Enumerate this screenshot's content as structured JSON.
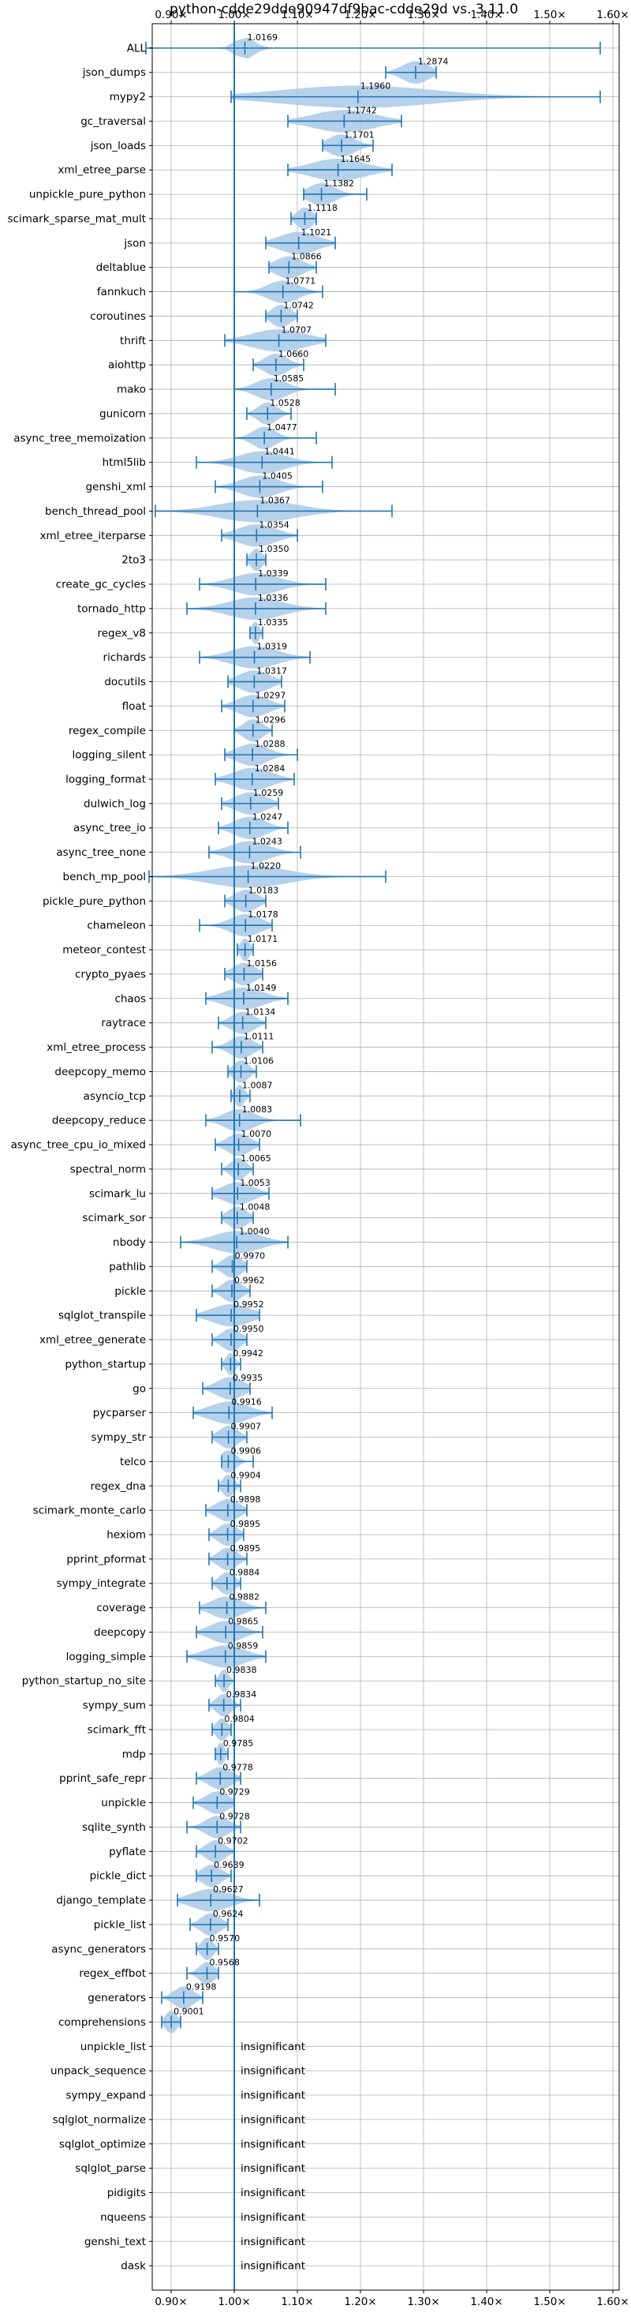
{
  "chart_data": {
    "type": "violin",
    "title": "python-cdde29dde90947df9bac-cdde29d vs. 3.11.0",
    "xlim": [
      0.87,
      1.61
    ],
    "x_ticks": [
      0.9,
      1.0,
      1.1,
      1.2,
      1.3,
      1.4,
      1.5,
      1.6
    ],
    "x_tick_labels": [
      "0.90×",
      "1.00×",
      "1.10×",
      "1.20×",
      "1.30×",
      "1.40×",
      "1.50×",
      "1.60×"
    ],
    "reference_line": 1.0,
    "grid": true,
    "insignificant_label": "insignificant",
    "colors": {
      "violin": "#a9c9e6",
      "marker": "#1f77b4",
      "grid": "#b0b0b0"
    },
    "benchmarks": [
      {
        "name": "ALL",
        "median": 1.0169,
        "label": "1.0169",
        "min": 0.86,
        "max": 1.58,
        "spread": 0.025
      },
      {
        "name": "json_dumps",
        "median": 1.2874,
        "label": "1.2874",
        "min": 1.24,
        "max": 1.32,
        "spread": 0.035
      },
      {
        "name": "mypy2",
        "median": 1.196,
        "label": "1.1960",
        "min": 0.995,
        "max": 1.58,
        "spread": 0.2
      },
      {
        "name": "gc_traversal",
        "median": 1.1742,
        "label": "1.1742",
        "min": 1.085,
        "max": 1.265,
        "spread": 0.08
      },
      {
        "name": "json_loads",
        "median": 1.1701,
        "label": "1.1701",
        "min": 1.14,
        "max": 1.22,
        "spread": 0.035
      },
      {
        "name": "xml_etree_parse",
        "median": 1.1645,
        "label": "1.1645",
        "min": 1.085,
        "max": 1.25,
        "spread": 0.07
      },
      {
        "name": "unpickle_pure_python",
        "median": 1.1382,
        "label": "1.1382",
        "min": 1.11,
        "max": 1.21,
        "spread": 0.035
      },
      {
        "name": "scimark_sparse_mat_mult",
        "median": 1.1118,
        "label": "1.1118",
        "min": 1.09,
        "max": 1.13,
        "spread": 0.02
      },
      {
        "name": "json",
        "median": 1.1021,
        "label": "1.1021",
        "min": 1.05,
        "max": 1.16,
        "spread": 0.05
      },
      {
        "name": "deltablue",
        "median": 1.0866,
        "label": "1.0866",
        "min": 1.055,
        "max": 1.13,
        "spread": 0.035
      },
      {
        "name": "fannkuch",
        "median": 1.0771,
        "label": "1.0771",
        "min": 1.0,
        "max": 1.14,
        "spread": 0.04
      },
      {
        "name": "coroutines",
        "median": 1.0742,
        "label": "1.0742",
        "min": 1.05,
        "max": 1.1,
        "spread": 0.025
      },
      {
        "name": "thrift",
        "median": 1.0707,
        "label": "1.0707",
        "min": 0.985,
        "max": 1.145,
        "spread": 0.07
      },
      {
        "name": "aiohttp",
        "median": 1.066,
        "label": "1.0660",
        "min": 1.03,
        "max": 1.11,
        "spread": 0.03
      },
      {
        "name": "mako",
        "median": 1.0585,
        "label": "1.0585",
        "min": 1.0,
        "max": 1.16,
        "spread": 0.04
      },
      {
        "name": "gunicorn",
        "median": 1.0528,
        "label": "1.0528",
        "min": 1.02,
        "max": 1.09,
        "spread": 0.025
      },
      {
        "name": "async_tree_memoization",
        "median": 1.0477,
        "label": "1.0477",
        "min": 1.0,
        "max": 1.13,
        "spread": 0.03
      },
      {
        "name": "html5lib",
        "median": 1.0441,
        "label": "1.0441",
        "min": 0.94,
        "max": 1.155,
        "spread": 0.06
      },
      {
        "name": "genshi_xml",
        "median": 1.0405,
        "label": "1.0405",
        "min": 0.97,
        "max": 1.14,
        "spread": 0.05
      },
      {
        "name": "bench_thread_pool",
        "median": 1.0367,
        "label": "1.0367",
        "min": 0.875,
        "max": 1.25,
        "spread": 0.1
      },
      {
        "name": "xml_etree_iterparse",
        "median": 1.0354,
        "label": "1.0354",
        "min": 0.98,
        "max": 1.1,
        "spread": 0.05
      },
      {
        "name": "2to3",
        "median": 1.035,
        "label": "1.0350",
        "min": 1.02,
        "max": 1.05,
        "spread": 0.015
      },
      {
        "name": "create_gc_cycles",
        "median": 1.0339,
        "label": "1.0339",
        "min": 0.945,
        "max": 1.145,
        "spread": 0.06
      },
      {
        "name": "tornado_http",
        "median": 1.0336,
        "label": "1.0336",
        "min": 0.925,
        "max": 1.145,
        "spread": 0.07
      },
      {
        "name": "regex_v8",
        "median": 1.0335,
        "label": "1.0335",
        "min": 1.025,
        "max": 1.045,
        "spread": 0.01
      },
      {
        "name": "richards",
        "median": 1.0319,
        "label": "1.0319",
        "min": 0.945,
        "max": 1.12,
        "spread": 0.06
      },
      {
        "name": "docutils",
        "median": 1.0317,
        "label": "1.0317",
        "min": 0.99,
        "max": 1.075,
        "spread": 0.04
      },
      {
        "name": "float",
        "median": 1.0297,
        "label": "1.0297",
        "min": 0.98,
        "max": 1.08,
        "spread": 0.04
      },
      {
        "name": "regex_compile",
        "median": 1.0296,
        "label": "1.0296",
        "min": 1.0,
        "max": 1.06,
        "spread": 0.025
      },
      {
        "name": "logging_silent",
        "median": 1.0288,
        "label": "1.0288",
        "min": 0.985,
        "max": 1.1,
        "spread": 0.04
      },
      {
        "name": "logging_format",
        "median": 1.0284,
        "label": "1.0284",
        "min": 0.97,
        "max": 1.095,
        "spread": 0.05
      },
      {
        "name": "dulwich_log",
        "median": 1.0259,
        "label": "1.0259",
        "min": 0.98,
        "max": 1.07,
        "spread": 0.04
      },
      {
        "name": "async_tree_io",
        "median": 1.0247,
        "label": "1.0247",
        "min": 0.975,
        "max": 1.085,
        "spread": 0.04
      },
      {
        "name": "async_tree_none",
        "median": 1.0243,
        "label": "1.0243",
        "min": 0.96,
        "max": 1.105,
        "spread": 0.05
      },
      {
        "name": "bench_mp_pool",
        "median": 1.022,
        "label": "1.0220",
        "min": 0.865,
        "max": 1.24,
        "spread": 0.1
      },
      {
        "name": "pickle_pure_python",
        "median": 1.0183,
        "label": "1.0183",
        "min": 0.985,
        "max": 1.05,
        "spread": 0.03
      },
      {
        "name": "chameleon",
        "median": 1.0178,
        "label": "1.0178",
        "min": 0.945,
        "max": 1.06,
        "spread": 0.04
      },
      {
        "name": "meteor_contest",
        "median": 1.0171,
        "label": "1.0171",
        "min": 1.005,
        "max": 1.03,
        "spread": 0.012
      },
      {
        "name": "crypto_pyaes",
        "median": 1.0156,
        "label": "1.0156",
        "min": 0.985,
        "max": 1.045,
        "spread": 0.03
      },
      {
        "name": "chaos",
        "median": 1.0149,
        "label": "1.0149",
        "min": 0.955,
        "max": 1.085,
        "spread": 0.05
      },
      {
        "name": "raytrace",
        "median": 1.0134,
        "label": "1.0134",
        "min": 0.975,
        "max": 1.05,
        "spread": 0.03
      },
      {
        "name": "xml_etree_process",
        "median": 1.0111,
        "label": "1.0111",
        "min": 0.965,
        "max": 1.045,
        "spread": 0.03
      },
      {
        "name": "deepcopy_memo",
        "median": 1.0106,
        "label": "1.0106",
        "min": 0.99,
        "max": 1.035,
        "spread": 0.02
      },
      {
        "name": "asyncio_tcp",
        "median": 1.0087,
        "label": "1.0087",
        "min": 0.995,
        "max": 1.025,
        "spread": 0.012
      },
      {
        "name": "deepcopy_reduce",
        "median": 1.0083,
        "label": "1.0083",
        "min": 0.955,
        "max": 1.105,
        "spread": 0.04
      },
      {
        "name": "async_tree_cpu_io_mixed",
        "median": 1.007,
        "label": "1.0070",
        "min": 0.97,
        "max": 1.04,
        "spread": 0.03
      },
      {
        "name": "spectral_norm",
        "median": 1.0065,
        "label": "1.0065",
        "min": 0.98,
        "max": 1.03,
        "spread": 0.02
      },
      {
        "name": "scimark_lu",
        "median": 1.0053,
        "label": "1.0053",
        "min": 0.965,
        "max": 1.055,
        "spread": 0.04
      },
      {
        "name": "scimark_sor",
        "median": 1.0048,
        "label": "1.0048",
        "min": 0.98,
        "max": 1.03,
        "spread": 0.025
      },
      {
        "name": "nbody",
        "median": 1.004,
        "label": "1.0040",
        "min": 0.915,
        "max": 1.085,
        "spread": 0.06
      },
      {
        "name": "pathlib",
        "median": 0.997,
        "label": "0.9970",
        "min": 0.965,
        "max": 1.02,
        "spread": 0.025
      },
      {
        "name": "pickle",
        "median": 0.9962,
        "label": "0.9962",
        "min": 0.965,
        "max": 1.025,
        "spread": 0.025
      },
      {
        "name": "sqlglot_transpile",
        "median": 0.9952,
        "label": "0.9952",
        "min": 0.94,
        "max": 1.04,
        "spread": 0.05
      },
      {
        "name": "xml_etree_generate",
        "median": 0.995,
        "label": "0.9950",
        "min": 0.965,
        "max": 1.02,
        "spread": 0.025
      },
      {
        "name": "python_startup",
        "median": 0.9942,
        "label": "0.9942",
        "min": 0.98,
        "max": 1.01,
        "spread": 0.012
      },
      {
        "name": "go",
        "median": 0.9935,
        "label": "0.9935",
        "min": 0.95,
        "max": 1.025,
        "spread": 0.035
      },
      {
        "name": "pycparser",
        "median": 0.9916,
        "label": "0.9916",
        "min": 0.935,
        "max": 1.06,
        "spread": 0.05
      },
      {
        "name": "sympy_str",
        "median": 0.9907,
        "label": "0.9907",
        "min": 0.965,
        "max": 1.02,
        "spread": 0.025
      },
      {
        "name": "telco",
        "median": 0.9906,
        "label": "0.9906",
        "min": 0.98,
        "max": 1.03,
        "spread": 0.02
      },
      {
        "name": "regex_dna",
        "median": 0.9904,
        "label": "0.9904",
        "min": 0.975,
        "max": 1.01,
        "spread": 0.015
      },
      {
        "name": "scimark_monte_carlo",
        "median": 0.9898,
        "label": "0.9898",
        "min": 0.955,
        "max": 1.02,
        "spread": 0.03
      },
      {
        "name": "hexiom",
        "median": 0.9895,
        "label": "0.9895",
        "min": 0.96,
        "max": 1.015,
        "spread": 0.025
      },
      {
        "name": "pprint_pformat",
        "median": 0.9895,
        "label": "0.9895",
        "min": 0.96,
        "max": 1.02,
        "spread": 0.025
      },
      {
        "name": "sympy_integrate",
        "median": 0.9884,
        "label": "0.9884",
        "min": 0.965,
        "max": 1.01,
        "spread": 0.02
      },
      {
        "name": "coverage",
        "median": 0.9882,
        "label": "0.9882",
        "min": 0.945,
        "max": 1.05,
        "spread": 0.04
      },
      {
        "name": "deepcopy",
        "median": 0.9865,
        "label": "0.9865",
        "min": 0.94,
        "max": 1.045,
        "spread": 0.04
      },
      {
        "name": "logging_simple",
        "median": 0.9859,
        "label": "0.9859",
        "min": 0.925,
        "max": 1.05,
        "spread": 0.05
      },
      {
        "name": "python_startup_no_site",
        "median": 0.9838,
        "label": "0.9838",
        "min": 0.97,
        "max": 1.0,
        "spread": 0.012
      },
      {
        "name": "sympy_sum",
        "median": 0.9834,
        "label": "0.9834",
        "min": 0.96,
        "max": 1.01,
        "spread": 0.02
      },
      {
        "name": "scimark_fft",
        "median": 0.9804,
        "label": "0.9804",
        "min": 0.965,
        "max": 0.995,
        "spread": 0.015
      },
      {
        "name": "mdp",
        "median": 0.9785,
        "label": "0.9785",
        "min": 0.97,
        "max": 0.99,
        "spread": 0.01
      },
      {
        "name": "pprint_safe_repr",
        "median": 0.9778,
        "label": "0.9778",
        "min": 0.94,
        "max": 1.01,
        "spread": 0.03
      },
      {
        "name": "unpickle",
        "median": 0.9729,
        "label": "0.9729",
        "min": 0.935,
        "max": 1.0,
        "spread": 0.03
      },
      {
        "name": "sqlite_synth",
        "median": 0.9728,
        "label": "0.9728",
        "min": 0.925,
        "max": 1.01,
        "spread": 0.03
      },
      {
        "name": "pyflate",
        "median": 0.9702,
        "label": "0.9702",
        "min": 0.94,
        "max": 1.0,
        "spread": 0.025
      },
      {
        "name": "pickle_dict",
        "median": 0.9639,
        "label": "0.9639",
        "min": 0.94,
        "max": 0.995,
        "spread": 0.025
      },
      {
        "name": "django_template",
        "median": 0.9627,
        "label": "0.9627",
        "min": 0.91,
        "max": 1.04,
        "spread": 0.05
      },
      {
        "name": "pickle_list",
        "median": 0.9624,
        "label": "0.9624",
        "min": 0.93,
        "max": 0.99,
        "spread": 0.025
      },
      {
        "name": "async_generators",
        "median": 0.957,
        "label": "0.9570",
        "min": 0.94,
        "max": 0.975,
        "spread": 0.015
      },
      {
        "name": "regex_effbot",
        "median": 0.9568,
        "label": "0.9568",
        "min": 0.925,
        "max": 0.975,
        "spread": 0.02
      },
      {
        "name": "generators",
        "median": 0.9198,
        "label": "0.9198",
        "min": 0.885,
        "max": 0.95,
        "spread": 0.025
      },
      {
        "name": "comprehensions",
        "median": 0.9001,
        "label": "0.9001",
        "min": 0.885,
        "max": 0.915,
        "spread": 0.015
      },
      {
        "name": "unpickle_list",
        "insignificant": true
      },
      {
        "name": "unpack_sequence",
        "insignificant": true
      },
      {
        "name": "sympy_expand",
        "insignificant": true
      },
      {
        "name": "sqlglot_normalize",
        "insignificant": true
      },
      {
        "name": "sqlglot_optimize",
        "insignificant": true
      },
      {
        "name": "sqlglot_parse",
        "insignificant": true
      },
      {
        "name": "pidigits",
        "insignificant": true
      },
      {
        "name": "nqueens",
        "insignificant": true
      },
      {
        "name": "genshi_text",
        "insignificant": true
      },
      {
        "name": "dask",
        "insignificant": true
      }
    ]
  }
}
